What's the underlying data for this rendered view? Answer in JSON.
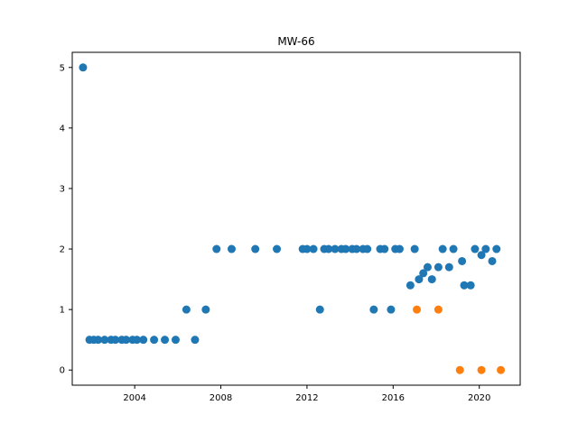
{
  "chart_data": {
    "type": "scatter",
    "title": "MW-66",
    "xlabel": "",
    "ylabel": "",
    "xlim": [
      2001.1,
      2021.9
    ],
    "ylim": [
      -0.25,
      5.25
    ],
    "x_ticks": [
      2004,
      2008,
      2012,
      2016,
      2020
    ],
    "y_ticks": [
      0,
      1,
      2,
      3,
      4,
      5
    ],
    "grid": false,
    "legend": "none",
    "series": [
      {
        "color": "#1f77b4",
        "points": [
          [
            2001.6,
            5.0
          ],
          [
            2001.9,
            0.5
          ],
          [
            2002.1,
            0.5
          ],
          [
            2002.3,
            0.5
          ],
          [
            2002.6,
            0.5
          ],
          [
            2002.9,
            0.5
          ],
          [
            2003.1,
            0.5
          ],
          [
            2003.4,
            0.5
          ],
          [
            2003.6,
            0.5
          ],
          [
            2003.9,
            0.5
          ],
          [
            2004.1,
            0.5
          ],
          [
            2004.4,
            0.5
          ],
          [
            2004.9,
            0.5
          ],
          [
            2005.4,
            0.5
          ],
          [
            2005.9,
            0.5
          ],
          [
            2006.4,
            1.0
          ],
          [
            2006.8,
            0.5
          ],
          [
            2007.3,
            1.0
          ],
          [
            2007.8,
            2.0
          ],
          [
            2008.5,
            2.0
          ],
          [
            2009.6,
            2.0
          ],
          [
            2010.6,
            2.0
          ],
          [
            2011.8,
            2.0
          ],
          [
            2012.0,
            2.0
          ],
          [
            2012.3,
            2.0
          ],
          [
            2012.6,
            1.0
          ],
          [
            2012.8,
            2.0
          ],
          [
            2013.0,
            2.0
          ],
          [
            2013.3,
            2.0
          ],
          [
            2013.6,
            2.0
          ],
          [
            2013.8,
            2.0
          ],
          [
            2014.1,
            2.0
          ],
          [
            2014.3,
            2.0
          ],
          [
            2014.6,
            2.0
          ],
          [
            2014.8,
            2.0
          ],
          [
            2015.1,
            1.0
          ],
          [
            2015.4,
            2.0
          ],
          [
            2015.6,
            2.0
          ],
          [
            2015.9,
            1.0
          ],
          [
            2016.1,
            2.0
          ],
          [
            2016.3,
            2.0
          ],
          [
            2016.8,
            1.4
          ],
          [
            2017.0,
            2.0
          ],
          [
            2017.2,
            1.5
          ],
          [
            2017.4,
            1.6
          ],
          [
            2017.6,
            1.7
          ],
          [
            2017.8,
            1.5
          ],
          [
            2018.1,
            1.7
          ],
          [
            2018.3,
            2.0
          ],
          [
            2018.6,
            1.7
          ],
          [
            2018.8,
            2.0
          ],
          [
            2019.2,
            1.8
          ],
          [
            2019.3,
            1.4
          ],
          [
            2019.6,
            1.4
          ],
          [
            2019.8,
            2.0
          ],
          [
            2020.1,
            1.9
          ],
          [
            2020.3,
            2.0
          ],
          [
            2020.6,
            1.8
          ],
          [
            2020.8,
            2.0
          ]
        ]
      },
      {
        "color": "#ff7f0e",
        "points": [
          [
            2017.1,
            1.0
          ],
          [
            2018.1,
            1.0
          ],
          [
            2019.1,
            0.0
          ],
          [
            2020.1,
            0.0
          ],
          [
            2021.0,
            0.0
          ]
        ]
      }
    ]
  }
}
